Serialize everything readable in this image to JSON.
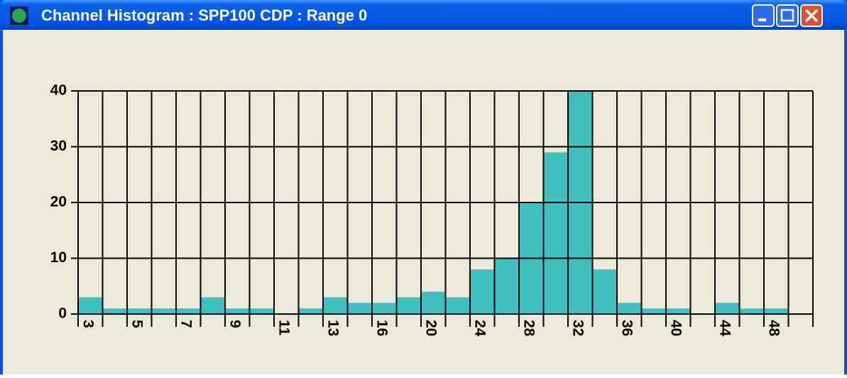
{
  "window": {
    "title": "Channel Histogram : SPP100 CDP : Range 0"
  },
  "chart_data": {
    "type": "bar",
    "categories": [
      "3",
      null,
      "5",
      null,
      "7",
      null,
      "9",
      null,
      "11",
      null,
      "13",
      null,
      "16",
      null,
      "20",
      null,
      "24",
      null,
      "28",
      null,
      "32",
      null,
      "36",
      null,
      "40",
      null,
      "44",
      null,
      "48",
      null
    ],
    "values": [
      3,
      1,
      1,
      1,
      1,
      3,
      1,
      1,
      0,
      1,
      3,
      2,
      2,
      3,
      4,
      3,
      8,
      10,
      20,
      29,
      40,
      8,
      2,
      1,
      1,
      0,
      2,
      1,
      1,
      0
    ],
    "color": "#40bfc1",
    "ylim": [
      0,
      40
    ],
    "yticks": [
      0,
      10,
      20,
      30,
      40
    ],
    "grid": true
  }
}
